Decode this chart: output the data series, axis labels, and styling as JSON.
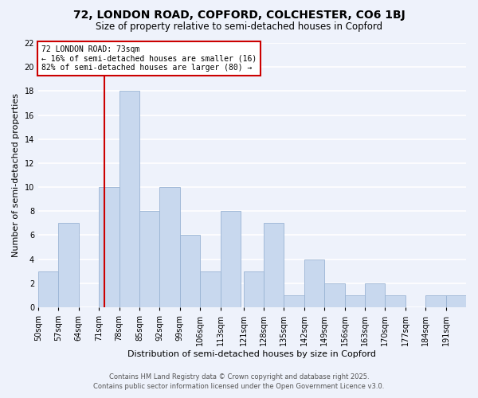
{
  "title": "72, LONDON ROAD, COPFORD, COLCHESTER, CO6 1BJ",
  "subtitle": "Size of property relative to semi-detached houses in Copford",
  "xlabel": "Distribution of semi-detached houses by size in Copford",
  "ylabel": "Number of semi-detached properties",
  "bar_labels": [
    "50sqm",
    "57sqm",
    "64sqm",
    "71sqm",
    "78sqm",
    "85sqm",
    "92sqm",
    "99sqm",
    "106sqm",
    "113sqm",
    "121sqm",
    "128sqm",
    "135sqm",
    "142sqm",
    "149sqm",
    "156sqm",
    "163sqm",
    "170sqm",
    "177sqm",
    "184sqm",
    "191sqm"
  ],
  "bar_values": [
    3,
    7,
    0,
    10,
    18,
    8,
    10,
    6,
    3,
    8,
    3,
    7,
    1,
    4,
    2,
    1,
    2,
    1,
    0,
    1,
    1
  ],
  "bar_color": "#c8d8ee",
  "bar_edge_color": "#9ab4d4",
  "background_color": "#eef2fb",
  "grid_color": "#ffffff",
  "vline_x_idx": 3,
  "bin_edges": [
    50,
    57,
    64,
    71,
    78,
    85,
    92,
    99,
    106,
    113,
    121,
    128,
    135,
    142,
    149,
    156,
    163,
    170,
    177,
    184,
    191,
    198
  ],
  "annotation_title": "72 LONDON ROAD: 73sqm",
  "annotation_line1": "← 16% of semi-detached houses are smaller (16)",
  "annotation_line2": "82% of semi-detached houses are larger (80) →",
  "annotation_box_color": "#ffffff",
  "annotation_box_edge_color": "#cc0000",
  "vline_color": "#cc0000",
  "ylim": [
    0,
    22
  ],
  "yticks": [
    0,
    2,
    4,
    6,
    8,
    10,
    12,
    14,
    16,
    18,
    20,
    22
  ],
  "footer1": "Contains HM Land Registry data © Crown copyright and database right 2025.",
  "footer2": "Contains public sector information licensed under the Open Government Licence v3.0.",
  "title_fontsize": 10,
  "subtitle_fontsize": 8.5,
  "axis_label_fontsize": 8,
  "tick_fontsize": 7,
  "annotation_fontsize": 7,
  "footer_fontsize": 6
}
